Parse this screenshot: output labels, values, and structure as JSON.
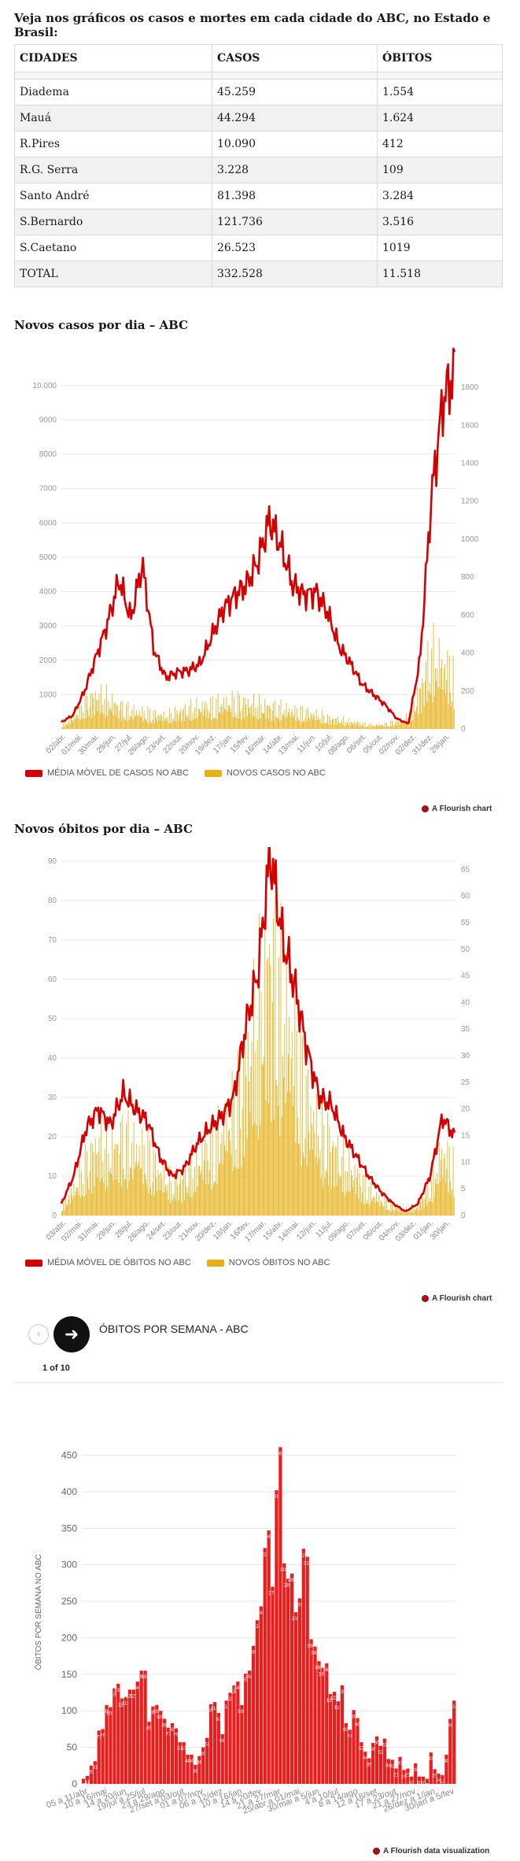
{
  "intro": "Veja nos gráficos os casos e mortes em cada cidade do ABC, no Estado e Brasil:",
  "table": {
    "headers": [
      "CIDADES",
      "CASOS",
      "ÓBITOS"
    ],
    "rows": [
      [
        "Diadema",
        "45.259",
        "1.554"
      ],
      [
        "Mauá",
        "44.294",
        "1.624"
      ],
      [
        "R.Pires",
        "10.090",
        "412"
      ],
      [
        "R.G. Serra",
        "3.228",
        "109"
      ],
      [
        "Santo André",
        "81.398",
        "3.284"
      ],
      [
        "S.Bernardo",
        "121.736",
        "3.516"
      ],
      [
        "S.Caetano",
        "26.523",
        "1019"
      ],
      [
        "TOTAL",
        "332.528",
        "11.518"
      ]
    ]
  },
  "colors": {
    "red": "#d40000",
    "gold": "#e6b118",
    "grid": "#e8e8e8"
  },
  "chart1_title": "Novos casos por dia – ABC",
  "chart2_title": "Novos óbitos por dia – ABC",
  "credit": "A Flourish chart",
  "credit_data": "A Flourish data visualization",
  "story": {
    "title": "ÓBITOS POR SEMANA - ABC",
    "pager": "1 of 10",
    "prev_icon": "chevron-left",
    "next_icon": "arrow-right"
  },
  "chart_data": [
    {
      "type": "line",
      "title": "Novos casos por dia – ABC",
      "ylim": [
        0,
        10500
      ],
      "yticks": [
        1000,
        2000,
        3000,
        4000,
        5000,
        6000,
        7000,
        8000,
        9000,
        10000
      ],
      "yticks_labels": [
        "1000",
        "2000",
        "3000",
        "4000",
        "5000",
        "6000",
        "7000",
        "8000",
        "9000",
        "10.000"
      ],
      "y2lim": [
        0,
        1900
      ],
      "y2ticks": [
        0,
        200,
        400,
        600,
        800,
        1000,
        1200,
        1400,
        1600,
        1800
      ],
      "xticks": [
        "02/abr.",
        "01/mai.",
        "30/mai.",
        "29/jun.",
        "27/jul.",
        "26/ago.",
        "23/set.",
        "22/out.",
        "20/nov.",
        "19/dez.",
        "17/jan.",
        "15/fev.",
        "16/mar.",
        "14/abr.",
        "13/mai.",
        "11/jun.",
        "10/jul.",
        "08/ago.",
        "06/set.",
        "05/out.",
        "02/nov.",
        "02/dez.",
        "31/dez.",
        "29/jan."
      ],
      "series": [
        {
          "name": "MÉDIA MÓVEL DE CASOS NO ABC",
          "values": [
            200,
            400,
            1100,
            2100,
            3100,
            4350,
            3200,
            4800,
            2300,
            1500,
            1650,
            1700,
            1900,
            2700,
            3500,
            3900,
            4200,
            4900,
            6100,
            5300,
            4200,
            3900,
            4000,
            3400,
            2400,
            1900,
            1300,
            1000,
            700,
            300,
            150,
            2000,
            6800,
            9600,
            10400
          ]
        },
        {
          "name": "NOVOS CASOS NO ABC",
          "values": [
            20,
            60,
            140,
            180,
            160,
            120,
            100,
            90,
            80,
            70,
            90,
            110,
            120,
            130,
            140,
            150,
            140,
            130,
            120,
            110,
            100,
            90,
            80,
            60,
            50,
            40,
            30,
            20,
            25,
            40,
            60,
            200,
            400,
            350,
            300
          ]
        }
      ],
      "legend": "bottom-left"
    },
    {
      "type": "line",
      "title": "Novos óbitos por dia – ABC",
      "ylim": [
        0,
        92
      ],
      "yticks": [
        0,
        10,
        20,
        30,
        40,
        50,
        60,
        70,
        80,
        90
      ],
      "y2lim": [
        0,
        68
      ],
      "y2ticks": [
        0,
        5,
        10,
        15,
        20,
        25,
        30,
        35,
        40,
        45,
        50,
        55,
        60,
        65
      ],
      "xticks": [
        "03/abr.",
        "02/mai.",
        "31/mai.",
        "29/jun.",
        "28/jul.",
        "26/ago.",
        "24/set.",
        "23/out.",
        "21/nov.",
        "20/dez.",
        "18/jan.",
        "16/fev.",
        "17/mar.",
        "15/abr.",
        "14/mai.",
        "12/jun.",
        "11/jul.",
        "09/ago.",
        "07/set.",
        "06/out.",
        "04/nov.",
        "03/dez.",
        "01/jan.",
        "30/jan."
      ],
      "series": [
        {
          "name": "MÉDIA MÓVEL DE ÓBITOS NO ABC",
          "values": [
            3,
            10,
            22,
            27,
            23,
            31,
            27,
            24,
            15,
            10,
            12,
            18,
            22,
            25,
            30,
            48,
            62,
            92,
            70,
            58,
            42,
            30,
            28,
            20,
            15,
            10,
            6,
            3,
            1,
            3,
            10,
            25,
            20
          ]
        },
        {
          "name": "NOVOS ÓBITOS NO ABC",
          "values": [
            2,
            5,
            10,
            14,
            12,
            15,
            13,
            12,
            8,
            6,
            7,
            10,
            13,
            16,
            20,
            28,
            38,
            50,
            40,
            32,
            22,
            16,
            14,
            10,
            8,
            5,
            3,
            2,
            1,
            2,
            5,
            12,
            10
          ]
        }
      ],
      "legend": "bottom-left"
    },
    {
      "type": "bar",
      "title": "ÓBITOS POR SEMANA - ABC",
      "ylabel": "ÓBITOS POR SEMANA NO ABC",
      "ylim": [
        0,
        470
      ],
      "yticks": [
        0,
        50,
        100,
        150,
        200,
        250,
        300,
        350,
        400,
        450
      ],
      "xticks": [
        "05 a 11/abr",
        "10 a 16/mai",
        "14 a 20/jun",
        "19/jul a 25/jul",
        "23 a 29/ago",
        "27/set a 03/out",
        "01 a 07/nov",
        "06 a 12/dez",
        "10 a 16/jan",
        "14 a 20/fev",
        "21 a 27/mar",
        "25/abr a 01/mai",
        "30/mai a 5/jun",
        "4 a 10/jul",
        "8 a 14/ago",
        "12 a 18/set",
        "17 a 23/out",
        "21 a 27/nov",
        "26/dez a 1/jan",
        "30/jan a 5/fev"
      ],
      "values": [
        7,
        11,
        25,
        31,
        73,
        75,
        108,
        105,
        131,
        137,
        117,
        119,
        129,
        129,
        140,
        155,
        155,
        85,
        106,
        108,
        100,
        89,
        77,
        83,
        76,
        57,
        57,
        40,
        40,
        26,
        38,
        50,
        63,
        109,
        112,
        97,
        68,
        114,
        125,
        135,
        140,
        108,
        151,
        155,
        189,
        224,
        243,
        323,
        347,
        270,
        402,
        461,
        302,
        281,
        288,
        235,
        254,
        322,
        311,
        198,
        188,
        168,
        159,
        165,
        123,
        126,
        113,
        135,
        83,
        74,
        101,
        90,
        57,
        44,
        35,
        56,
        65,
        52,
        62,
        34,
        33,
        21,
        37,
        19,
        21,
        10,
        28,
        10,
        10,
        7,
        43,
        20,
        14,
        12,
        40,
        89,
        114
      ],
      "value_labels": [
        "7",
        "11",
        "25",
        "31",
        "73",
        "75",
        "108",
        "105",
        "131",
        "137",
        "117",
        "119",
        "129",
        "129",
        "140",
        "155",
        "155",
        "85",
        "106",
        "108",
        "100",
        "89",
        "77",
        "83",
        "76",
        "57",
        "57",
        "40",
        "40",
        "26",
        "38",
        "50",
        "63",
        "109",
        "112",
        "97",
        "68",
        "114",
        "125",
        "135",
        "140",
        "108",
        "151",
        "155",
        "189",
        "224",
        "243",
        "323",
        "347",
        "270",
        "402",
        "461",
        "302",
        "281",
        "288",
        "235",
        "254",
        "322",
        "311",
        "198",
        "188",
        "168",
        "159",
        "165",
        "123",
        "126",
        "113",
        "135",
        "83",
        "74",
        "101",
        "90",
        "57",
        "44",
        "35",
        "56",
        "65",
        "52",
        "62",
        "34",
        "33",
        "21",
        "37",
        "19",
        "21",
        "10",
        "28",
        "10",
        "10",
        "7",
        "43",
        "20",
        "14",
        "12",
        "40",
        "89",
        "114"
      ]
    }
  ]
}
